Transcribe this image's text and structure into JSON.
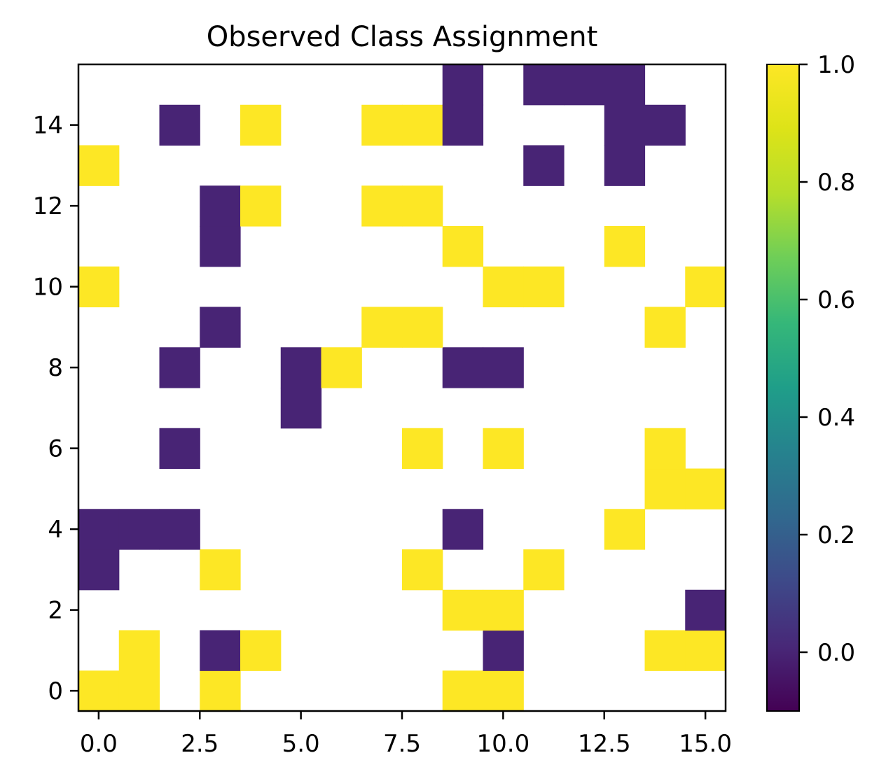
{
  "chart_data": {
    "type": "heatmap",
    "title": "Observed Class Assignment",
    "xlabel": "",
    "ylabel": "",
    "grid": false,
    "shape": [
      16,
      16
    ],
    "xlim": [
      -0.5,
      15.5
    ],
    "ylim": [
      -0.5,
      15.5
    ],
    "origin": "lower",
    "value_range": [
      -0.1,
      1.0
    ],
    "colormap": "viridis",
    "missing_color": "#ffffff",
    "x_ticks": [
      0.0,
      2.5,
      5.0,
      7.5,
      10.0,
      12.5,
      15.0
    ],
    "x_tick_labels": [
      "0.0",
      "2.5",
      "5.0",
      "7.5",
      "10.0",
      "12.5",
      "15.0"
    ],
    "y_ticks": [
      0,
      2,
      4,
      6,
      8,
      10,
      12,
      14
    ],
    "y_tick_labels": [
      "0",
      "2",
      "4",
      "6",
      "8",
      "10",
      "12",
      "14"
    ],
    "colorbar_ticks": [
      0.0,
      0.2,
      0.4,
      0.6,
      0.8,
      1.0
    ],
    "colorbar_tick_labels": [
      "0.0",
      "0.2",
      "0.4",
      "0.6",
      "0.8",
      "1.0"
    ],
    "cells": [
      {
        "x": 0,
        "y": 0,
        "value": 1
      },
      {
        "x": 1,
        "y": 0,
        "value": 1
      },
      {
        "x": 3,
        "y": 0,
        "value": 1
      },
      {
        "x": 9,
        "y": 0,
        "value": 1
      },
      {
        "x": 10,
        "y": 0,
        "value": 1
      },
      {
        "x": 1,
        "y": 1,
        "value": 1
      },
      {
        "x": 3,
        "y": 1,
        "value": 0
      },
      {
        "x": 4,
        "y": 1,
        "value": 1
      },
      {
        "x": 10,
        "y": 1,
        "value": 0
      },
      {
        "x": 14,
        "y": 1,
        "value": 1
      },
      {
        "x": 15,
        "y": 1,
        "value": 1
      },
      {
        "x": 9,
        "y": 2,
        "value": 1
      },
      {
        "x": 10,
        "y": 2,
        "value": 1
      },
      {
        "x": 15,
        "y": 2,
        "value": 0
      },
      {
        "x": 0,
        "y": 3,
        "value": 0
      },
      {
        "x": 3,
        "y": 3,
        "value": 1
      },
      {
        "x": 8,
        "y": 3,
        "value": 1
      },
      {
        "x": 11,
        "y": 3,
        "value": 1
      },
      {
        "x": 0,
        "y": 4,
        "value": 0
      },
      {
        "x": 1,
        "y": 4,
        "value": 0
      },
      {
        "x": 2,
        "y": 4,
        "value": 0
      },
      {
        "x": 9,
        "y": 4,
        "value": 0
      },
      {
        "x": 13,
        "y": 4,
        "value": 1
      },
      {
        "x": 14,
        "y": 5,
        "value": 1
      },
      {
        "x": 15,
        "y": 5,
        "value": 1
      },
      {
        "x": 2,
        "y": 6,
        "value": 0
      },
      {
        "x": 8,
        "y": 6,
        "value": 1
      },
      {
        "x": 10,
        "y": 6,
        "value": 1
      },
      {
        "x": 14,
        "y": 6,
        "value": 1
      },
      {
        "x": 5,
        "y": 7,
        "value": 0
      },
      {
        "x": 2,
        "y": 8,
        "value": 0
      },
      {
        "x": 5,
        "y": 8,
        "value": 0
      },
      {
        "x": 6,
        "y": 8,
        "value": 1
      },
      {
        "x": 9,
        "y": 8,
        "value": 0
      },
      {
        "x": 10,
        "y": 8,
        "value": 0
      },
      {
        "x": 3,
        "y": 9,
        "value": 0
      },
      {
        "x": 7,
        "y": 9,
        "value": 1
      },
      {
        "x": 8,
        "y": 9,
        "value": 1
      },
      {
        "x": 14,
        "y": 9,
        "value": 1
      },
      {
        "x": 0,
        "y": 10,
        "value": 1
      },
      {
        "x": 10,
        "y": 10,
        "value": 1
      },
      {
        "x": 11,
        "y": 10,
        "value": 1
      },
      {
        "x": 15,
        "y": 10,
        "value": 1
      },
      {
        "x": 3,
        "y": 11,
        "value": 0
      },
      {
        "x": 9,
        "y": 11,
        "value": 1
      },
      {
        "x": 13,
        "y": 11,
        "value": 1
      },
      {
        "x": 3,
        "y": 12,
        "value": 0
      },
      {
        "x": 4,
        "y": 12,
        "value": 1
      },
      {
        "x": 7,
        "y": 12,
        "value": 1
      },
      {
        "x": 8,
        "y": 12,
        "value": 1
      },
      {
        "x": 0,
        "y": 13,
        "value": 1
      },
      {
        "x": 11,
        "y": 13,
        "value": 0
      },
      {
        "x": 13,
        "y": 13,
        "value": 0
      },
      {
        "x": 2,
        "y": 14,
        "value": 0
      },
      {
        "x": 4,
        "y": 14,
        "value": 1
      },
      {
        "x": 7,
        "y": 14,
        "value": 1
      },
      {
        "x": 8,
        "y": 14,
        "value": 1
      },
      {
        "x": 9,
        "y": 14,
        "value": 0
      },
      {
        "x": 13,
        "y": 14,
        "value": 0
      },
      {
        "x": 14,
        "y": 14,
        "value": 0
      },
      {
        "x": 9,
        "y": 15,
        "value": 0
      },
      {
        "x": 11,
        "y": 15,
        "value": 0
      },
      {
        "x": 12,
        "y": 15,
        "value": 0
      },
      {
        "x": 13,
        "y": 15,
        "value": 0
      }
    ]
  }
}
